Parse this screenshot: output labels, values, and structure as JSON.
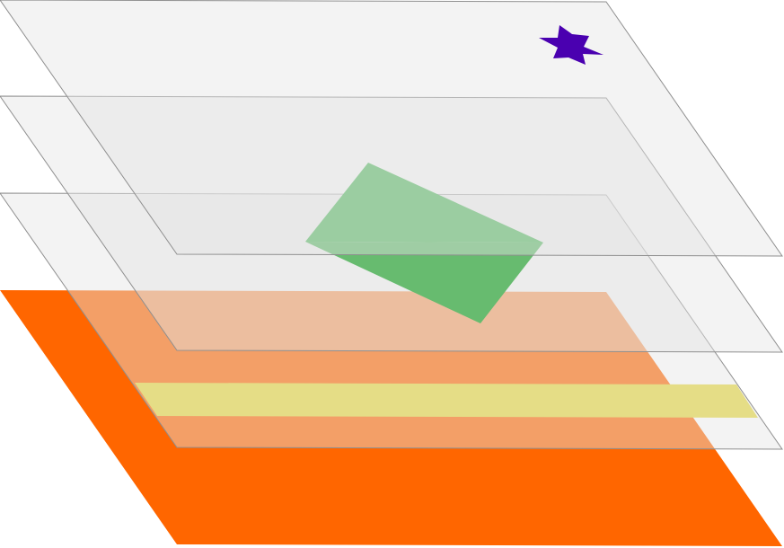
{
  "diagram": {
    "kind": "stacked-layers",
    "layer_order_bottom_to_top": [
      "orange-base-layer",
      "yellow-band-layer",
      "transparent-layer",
      "green-rectangle-layer",
      "transparent-layer",
      "star-layer"
    ],
    "colors": {
      "base": "#ff6600",
      "band": "#e6d83a",
      "rectangle": "#009a10",
      "star": "#4a00b0",
      "sheet_fill": "#e5e5e5",
      "sheet_stroke": "#8f8f8f"
    },
    "shapes": [
      {
        "name": "orange-base",
        "type": "parallelogram"
      },
      {
        "name": "yellow-band",
        "type": "stripe"
      },
      {
        "name": "green-rectangle",
        "type": "rectangle"
      },
      {
        "name": "purple-star",
        "type": "six-pointed-star"
      }
    ]
  }
}
